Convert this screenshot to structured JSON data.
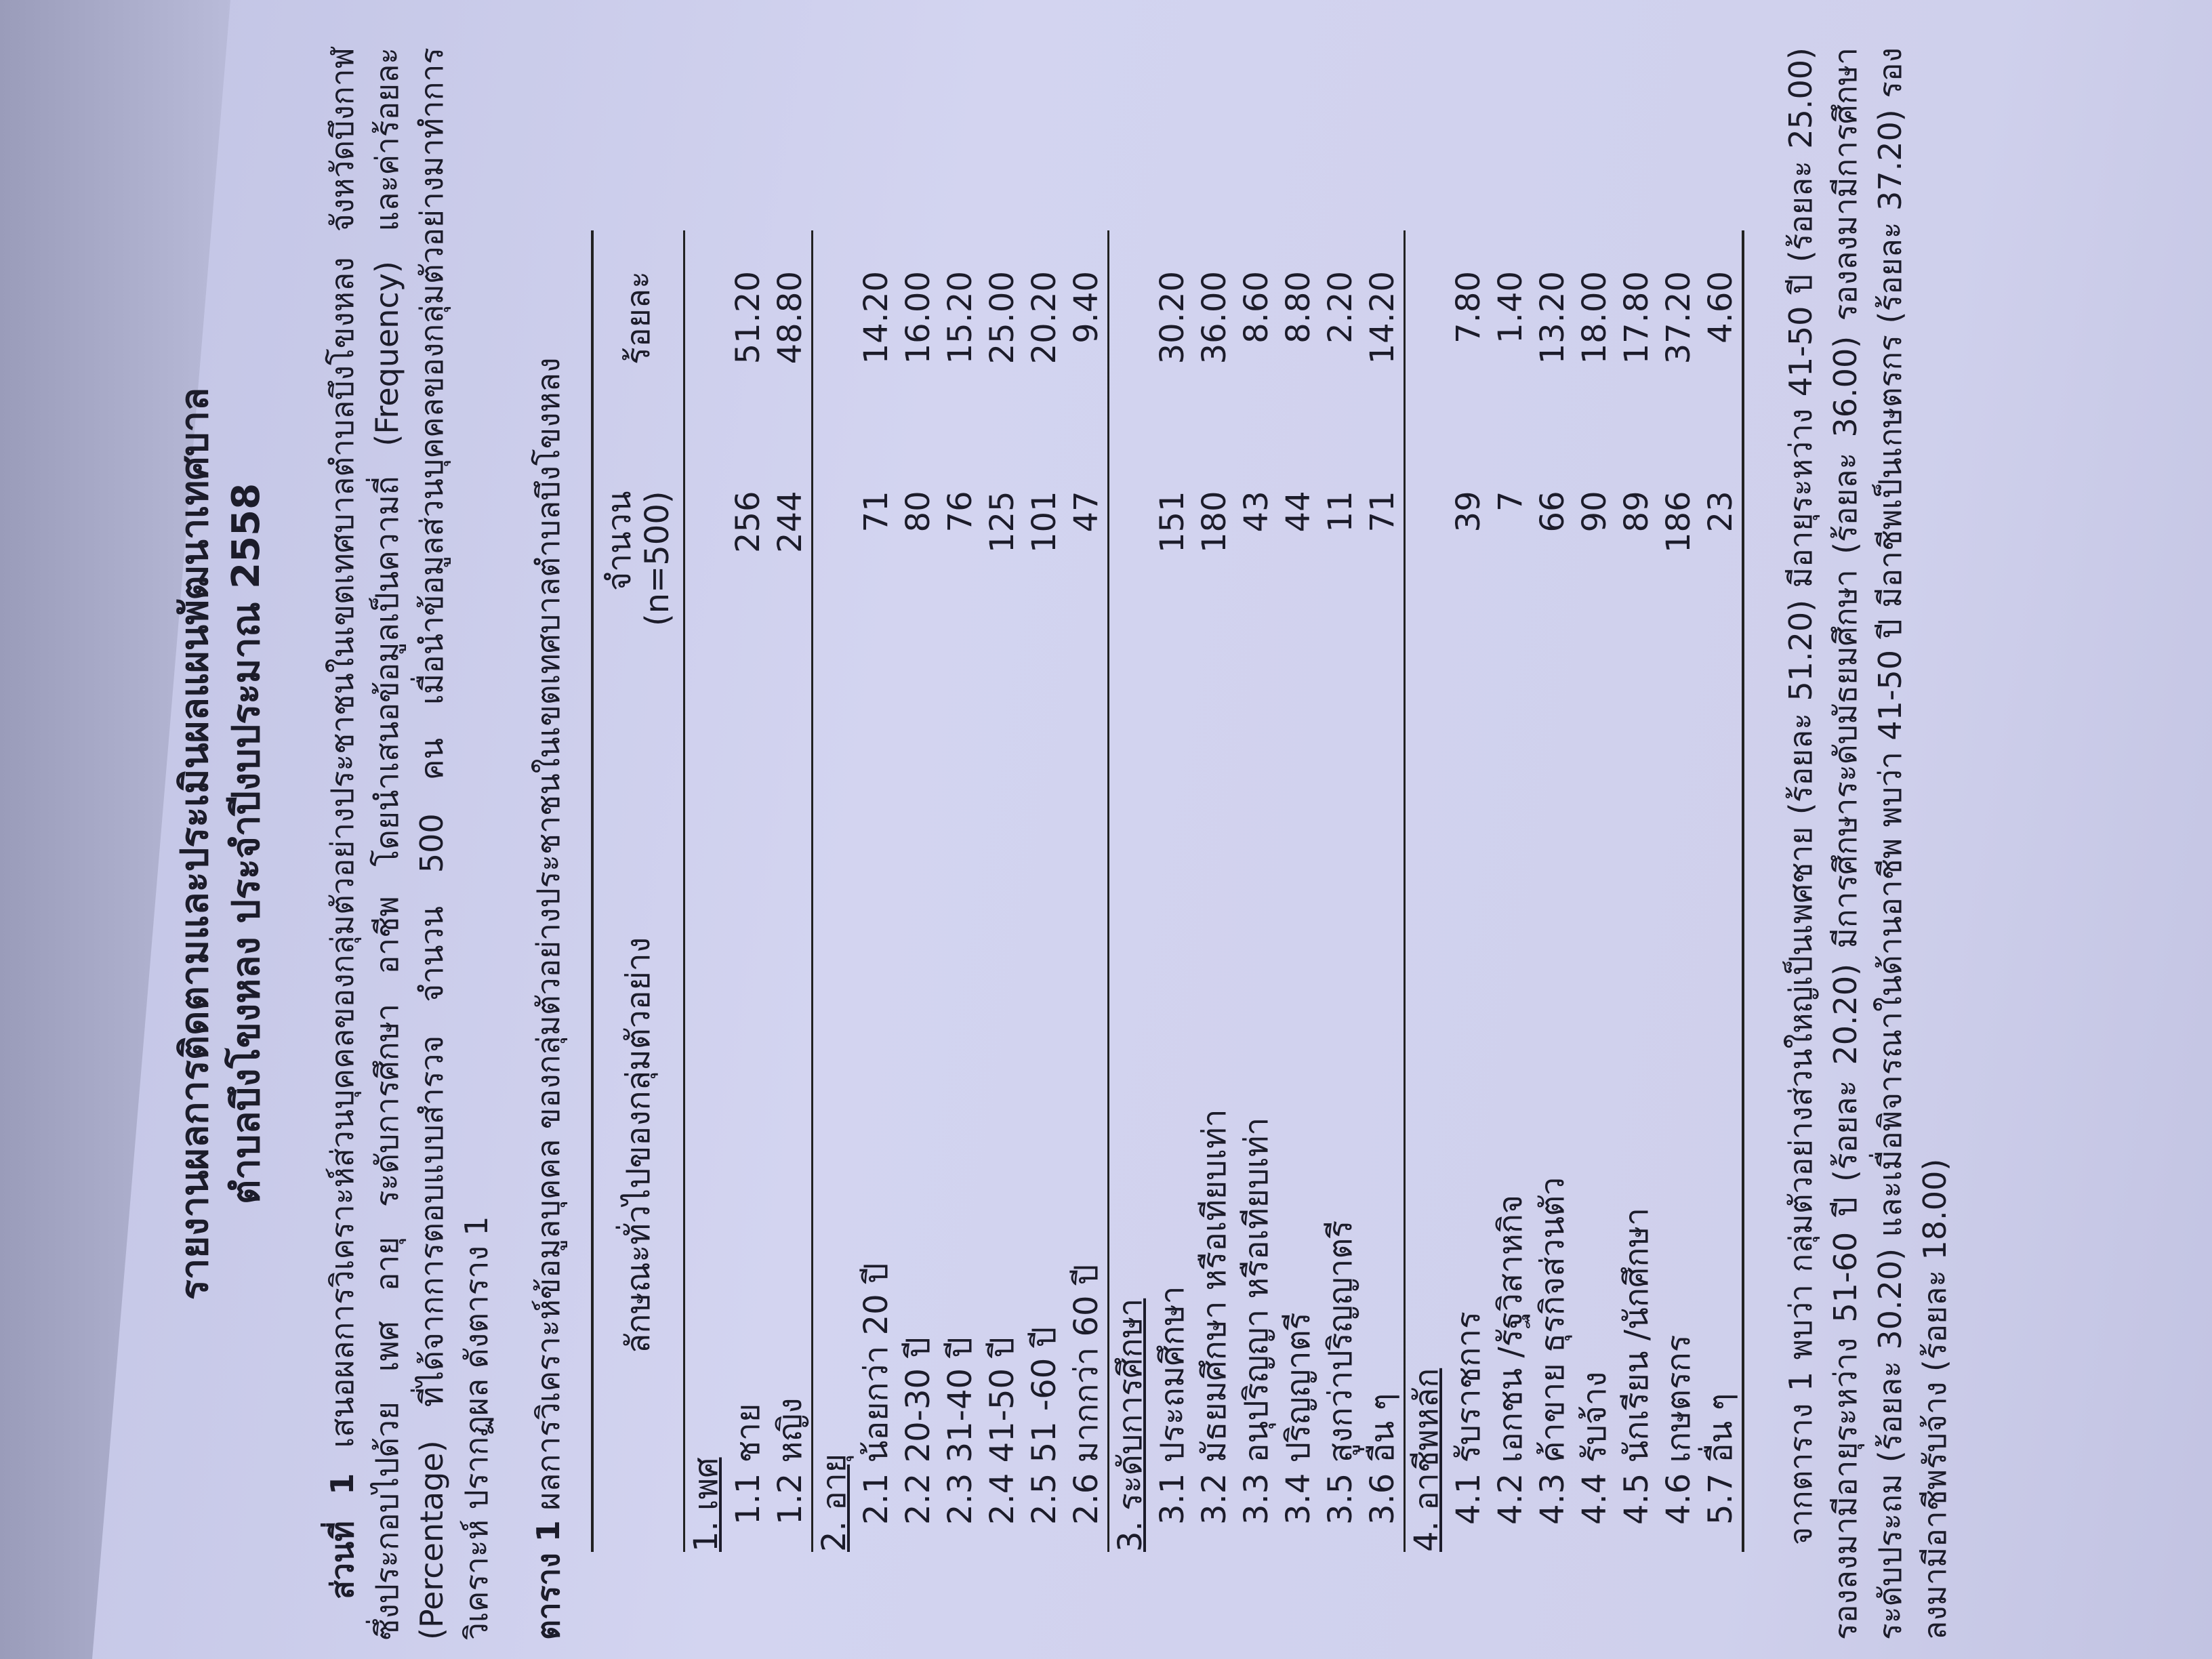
{
  "header": {
    "title_line1": "รายงานผลการติดตามและประเมินผลแผนพัฒนาเทศบาล",
    "title_line2": "ตำบลบึงโขงหลง ประจำปีงบประมาณ 2558"
  },
  "intro": {
    "label": "ส่วนที่ 1",
    "text": "เสนอผลการวิเคราะห์ส่วนบุคคลของกลุ่มตัวอย่างประชาชนในเขตเทศบาลตำบลบึงโขงหลง จังหวัดบึงกาฬ ซึ่งประกอบไปด้วย เพศ อายุ ระดับการศึกษา อาชีพ โดยนำเสนอข้อมูลเป็นความถี่ (Frequency) และค่าร้อยละ (Percentage) ที่ได้จากการตอบแบบสำรวจ จำนวน 500 คน เมื่อนำข้อมูลส่วนบุคคลของกลุ่มตัวอย่างมาทำการวิเคราะห์ ปรากฏผล ดังตาราง 1"
  },
  "table": {
    "caption_label": "ตาราง 1",
    "caption": "ผลการวิเคราะห์ข้อมูลบุคคล ของกลุ่มตัวอย่างประชาชนในเขตเทศบาลตำบลบึงโขงหลง",
    "columns": [
      "ลักษณะทั่วไปของกลุ่มตัวอย่าง",
      [
        "จำนวน",
        "(n=500)"
      ],
      "ร้อยละ"
    ],
    "sections": [
      {
        "title": "1. เพศ",
        "rows": [
          [
            "1.1 ชาย",
            "256",
            "51.20"
          ],
          [
            "1.2 หญิง",
            "244",
            "48.80"
          ]
        ]
      },
      {
        "title": "2. อายุ",
        "rows": [
          [
            "2.1 น้อยกว่า 20 ปี",
            "71",
            "14.20"
          ],
          [
            "2.2 20-30 ปี",
            "80",
            "16.00"
          ],
          [
            "2.3 31-40 ปี",
            "76",
            "15.20"
          ],
          [
            "2.4 41-50 ปี",
            "125",
            "25.00"
          ],
          [
            "2.5 51 -60 ปี",
            "101",
            "20.20"
          ],
          [
            "2.6 มากกว่า 60 ปี",
            "47",
            "9.40"
          ]
        ]
      },
      {
        "title": "3. ระดับการศึกษา",
        "rows": [
          [
            "3.1 ประถมศึกษา",
            "151",
            "30.20"
          ],
          [
            "3.2 มัธยมศึกษา หรือเทียบเท่า",
            "180",
            "36.00"
          ],
          [
            "3.3 อนุปริญญา หรือเทียบเท่า",
            "43",
            "8.60"
          ],
          [
            "3.4 ปริญญาตรี",
            "44",
            "8.80"
          ],
          [
            "3.5 สูงกว่าปริญญาตรี",
            "11",
            "2.20"
          ],
          [
            "3.6 อื่น ๆ",
            "71",
            "14.20"
          ]
        ]
      },
      {
        "title": "4. อาชีพหลัก",
        "rows": [
          [
            "4.1 รับราชการ",
            "39",
            "7.80"
          ],
          [
            "4.2 เอกชน /รัฐวิสาหกิจ",
            "7",
            "1.40"
          ],
          [
            "4.3 ค้าขาย ธุรกิจส่วนตัว",
            "66",
            "13.20"
          ],
          [
            "4.4 รับจ้าง",
            "90",
            "18.00"
          ],
          [
            "4.5 นักเรียน /นักศึกษา",
            "89",
            "17.80"
          ],
          [
            "4.6 เกษตรกร",
            "186",
            "37.20"
          ],
          [
            "5.7 อื่น ๆ",
            "23",
            "4.60"
          ]
        ]
      }
    ]
  },
  "summary": "จากตาราง 1 พบว่า กลุ่มตัวอย่างส่วนใหญ่เป็นเพศชาย (ร้อยละ 51.20) มีอายุระหว่าง 41-50 ปี (ร้อยละ 25.00) รองลงมามีอายุระหว่าง 51-60 ปี (ร้อยละ 20.20) มีการศึกษาระดับมัธยมศึกษา (ร้อยละ 36.00) รองลงมามีการศึกษาระดับประถม (ร้อยละ 30.20) และเมื่อพิจารณาในด้านอาชีพ พบว่า 41-50 ปี มีอาชีพเป็นเกษตรกร (ร้อยละ 37.20) รองลงมามีอาชีพรับจ้าง (ร้อยละ 18.00)"
}
